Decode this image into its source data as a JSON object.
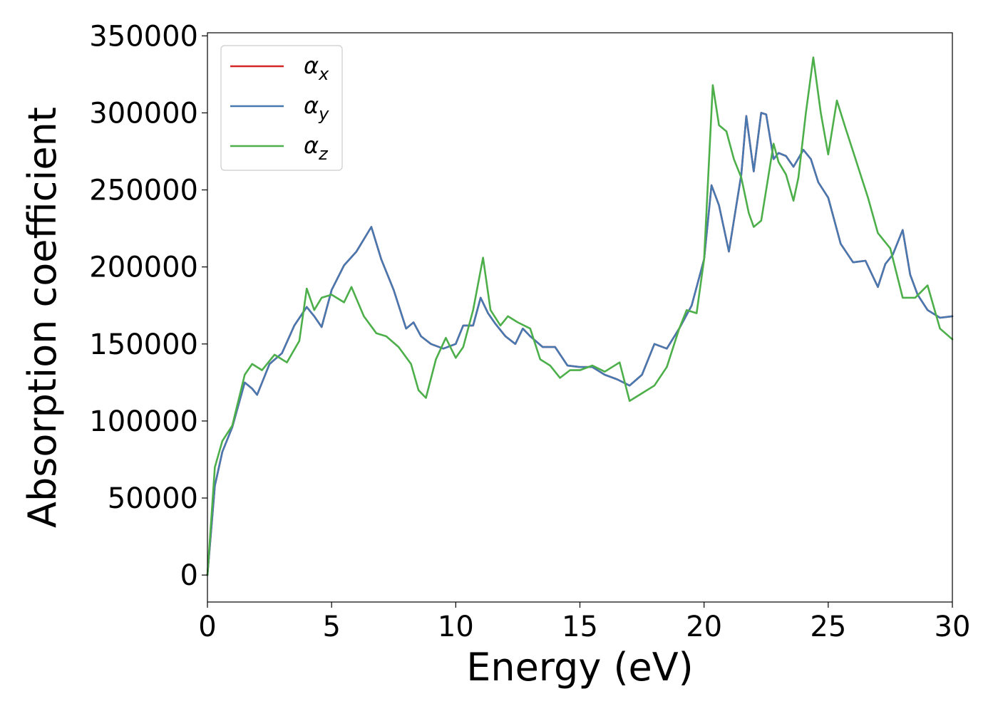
{
  "chart_data": {
    "type": "line",
    "title": "",
    "xlabel": "Energy (eV)",
    "ylabel": "Absorption coefficient",
    "xlim": [
      0,
      30
    ],
    "ylim": [
      -17500,
      352000
    ],
    "xticks": [
      0,
      5,
      10,
      15,
      20,
      25,
      30
    ],
    "yticks": [
      0,
      50000,
      100000,
      150000,
      200000,
      250000,
      300000,
      350000
    ],
    "grid": false,
    "legend_position": "top-left",
    "series": [
      {
        "name": "αx",
        "legend_main": "α",
        "legend_sub": "x",
        "color": "#d62728",
        "x": [
          0,
          0.3,
          0.6,
          1.0,
          1.5,
          1.8,
          2.0,
          2.5,
          3.0,
          3.5,
          4.0,
          4.3,
          4.6,
          5.0,
          5.5,
          6.0,
          6.6,
          7.0,
          7.5,
          8.0,
          8.3,
          8.6,
          9.0,
          9.5,
          10.0,
          10.3,
          10.7,
          11.0,
          11.3,
          11.6,
          12.0,
          12.4,
          12.7,
          13.0,
          13.5,
          14.0,
          14.5,
          15.0,
          15.5,
          16.0,
          16.5,
          17.0,
          17.5,
          18.0,
          18.5,
          19.0,
          19.5,
          20.0,
          20.3,
          20.6,
          21.0,
          21.5,
          21.7,
          22.0,
          22.3,
          22.5,
          22.8,
          23.0,
          23.3,
          23.6,
          24.0,
          24.3,
          24.6,
          25.0,
          25.5,
          26.0,
          26.5,
          27.0,
          27.3,
          27.6,
          28.0,
          28.3,
          28.6,
          29.0,
          29.5,
          30.0
        ],
        "y": [
          0,
          58000,
          80000,
          96000,
          125000,
          121000,
          117000,
          137000,
          144000,
          162000,
          174000,
          168000,
          161000,
          185000,
          201000,
          210000,
          226000,
          205000,
          185000,
          160000,
          164000,
          155000,
          150000,
          147000,
          150000,
          162000,
          162000,
          180000,
          170000,
          163000,
          155000,
          150000,
          160000,
          155000,
          148000,
          148000,
          136000,
          135000,
          135000,
          130000,
          127000,
          123000,
          130000,
          150000,
          147000,
          160000,
          175000,
          205000,
          253000,
          240000,
          210000,
          260000,
          298000,
          262000,
          300000,
          299000,
          270000,
          274000,
          272000,
          265000,
          276000,
          270000,
          255000,
          245000,
          215000,
          203000,
          204000,
          187000,
          202000,
          208000,
          224000,
          195000,
          182000,
          172000,
          167000,
          168000
        ]
      },
      {
        "name": "αy",
        "legend_main": "α",
        "legend_sub": "y",
        "color": "#4878b0",
        "x": [
          0,
          0.3,
          0.6,
          1.0,
          1.5,
          1.8,
          2.0,
          2.5,
          3.0,
          3.5,
          4.0,
          4.3,
          4.6,
          5.0,
          5.5,
          6.0,
          6.6,
          7.0,
          7.5,
          8.0,
          8.3,
          8.6,
          9.0,
          9.5,
          10.0,
          10.3,
          10.7,
          11.0,
          11.3,
          11.6,
          12.0,
          12.4,
          12.7,
          13.0,
          13.5,
          14.0,
          14.5,
          15.0,
          15.5,
          16.0,
          16.5,
          17.0,
          17.5,
          18.0,
          18.5,
          19.0,
          19.5,
          20.0,
          20.3,
          20.6,
          21.0,
          21.5,
          21.7,
          22.0,
          22.3,
          22.5,
          22.8,
          23.0,
          23.3,
          23.6,
          24.0,
          24.3,
          24.6,
          25.0,
          25.5,
          26.0,
          26.5,
          27.0,
          27.3,
          27.6,
          28.0,
          28.3,
          28.6,
          29.0,
          29.5,
          30.0
        ],
        "y": [
          0,
          58000,
          80000,
          96000,
          125000,
          121000,
          117000,
          137000,
          144000,
          162000,
          174000,
          168000,
          161000,
          185000,
          201000,
          210000,
          226000,
          205000,
          185000,
          160000,
          164000,
          155000,
          150000,
          147000,
          150000,
          162000,
          162000,
          180000,
          170000,
          163000,
          155000,
          150000,
          160000,
          155000,
          148000,
          148000,
          136000,
          135000,
          135000,
          130000,
          127000,
          123000,
          130000,
          150000,
          147000,
          160000,
          175000,
          205000,
          253000,
          240000,
          210000,
          260000,
          298000,
          262000,
          300000,
          299000,
          270000,
          274000,
          272000,
          265000,
          276000,
          270000,
          255000,
          245000,
          215000,
          203000,
          204000,
          187000,
          202000,
          208000,
          224000,
          195000,
          182000,
          172000,
          167000,
          168000
        ]
      },
      {
        "name": "αz",
        "legend_main": "α",
        "legend_sub": "z",
        "color": "#4daf4a",
        "x": [
          0,
          0.3,
          0.6,
          1.0,
          1.5,
          1.8,
          2.2,
          2.7,
          3.2,
          3.7,
          4.0,
          4.3,
          4.6,
          5.0,
          5.5,
          5.8,
          6.3,
          6.8,
          7.2,
          7.7,
          8.2,
          8.5,
          8.8,
          9.2,
          9.6,
          10.0,
          10.3,
          10.7,
          11.1,
          11.4,
          11.8,
          12.1,
          12.5,
          13.0,
          13.4,
          13.8,
          14.2,
          14.6,
          15.0,
          15.5,
          16.0,
          16.6,
          17.0,
          17.5,
          18.0,
          18.5,
          19.0,
          19.3,
          19.7,
          20.0,
          20.35,
          20.6,
          20.9,
          21.2,
          21.5,
          21.8,
          22.0,
          22.3,
          22.5,
          22.8,
          23.0,
          23.3,
          23.6,
          23.8,
          24.1,
          24.4,
          24.7,
          25.0,
          25.35,
          25.7,
          26.0,
          26.3,
          26.6,
          27.0,
          27.5,
          28.0,
          28.5,
          29.0,
          29.5,
          30.0
        ],
        "y": [
          0,
          70000,
          87000,
          97000,
          130000,
          137000,
          133000,
          143000,
          138000,
          152000,
          186000,
          172000,
          180000,
          182000,
          177000,
          187000,
          168000,
          157000,
          155000,
          148000,
          137000,
          120000,
          115000,
          140000,
          154000,
          141000,
          148000,
          172000,
          206000,
          172000,
          162000,
          168000,
          164000,
          160000,
          140000,
          136000,
          128000,
          133000,
          133000,
          136000,
          132000,
          138000,
          113000,
          118000,
          123000,
          135000,
          160000,
          172000,
          170000,
          205000,
          318000,
          292000,
          288000,
          270000,
          258000,
          235000,
          226000,
          230000,
          250000,
          280000,
          268000,
          260000,
          243000,
          258000,
          300000,
          336000,
          300000,
          273000,
          308000,
          290000,
          275000,
          260000,
          245000,
          222000,
          212000,
          180000,
          180000,
          188000,
          160000,
          153000
        ]
      }
    ]
  }
}
